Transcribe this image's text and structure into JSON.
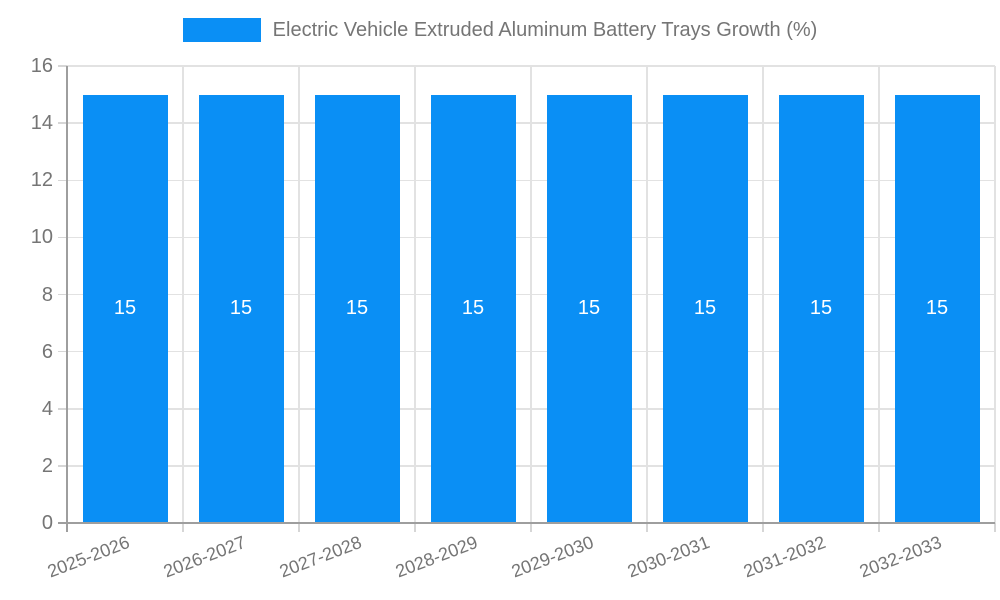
{
  "legend": {
    "label": "Electric Vehicle Extruded Aluminum Battery Trays Growth (%)"
  },
  "chart_data": {
    "type": "bar",
    "title": "Electric Vehicle Extruded Aluminum Battery Trays Growth (%)",
    "categories": [
      "2025-2026",
      "2026-2027",
      "2027-2028",
      "2028-2029",
      "2029-2030",
      "2030-2031",
      "2031-2032",
      "2032-2033"
    ],
    "values": [
      15,
      15,
      15,
      15,
      15,
      15,
      15,
      15
    ],
    "bar_labels": [
      "15",
      "15",
      "15",
      "15",
      "15",
      "15",
      "15",
      "15"
    ],
    "xlabel": "",
    "ylabel": "",
    "ylim": [
      0,
      16
    ],
    "yticks": [
      0,
      2,
      4,
      6,
      8,
      10,
      12,
      14,
      16
    ],
    "grid": true,
    "legend_position": "top",
    "x_label_rotation_deg": -21,
    "colors": {
      "bar": "#0A8FF5",
      "bar_label": "#FFFFFF",
      "gridline": "#E2E2E2",
      "tick_mark": "#D6D6D6",
      "axis_line": "#9E9E9E",
      "tick_label": "#757575",
      "legend_label": "#757575",
      "background": "#FFFFFF"
    }
  }
}
